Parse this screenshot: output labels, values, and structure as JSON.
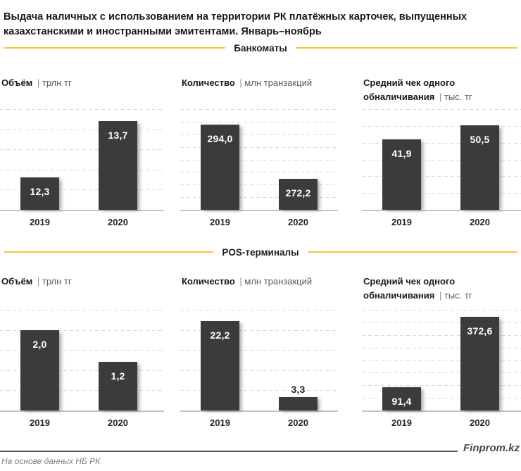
{
  "page_title": "Выдача наличных с использованием на территории РК платёжных карточек, выпущенных казахстанскими и иностранными эмитентами. Январь–ноябрь",
  "sections": [
    {
      "label": "Банкоматы"
    },
    {
      "label": "POS-терминалы"
    }
  ],
  "chart_data": [
    {
      "type": "bar",
      "section": "Банкоматы",
      "metric": "Объём",
      "unit": "трлн тг",
      "categories": [
        "2019",
        "2020"
      ],
      "values": [
        12.3,
        13.7
      ],
      "value_labels": [
        "12,3",
        "13,7"
      ],
      "ylim": [
        11.5,
        14
      ],
      "grid_steps": 5,
      "grid": true,
      "legend": false
    },
    {
      "type": "bar",
      "section": "Банкоматы",
      "metric": "Количество",
      "unit": "млн транзакций",
      "categories": [
        "2019",
        "2020"
      ],
      "values": [
        294.0,
        272.2
      ],
      "value_labels": [
        "294,0",
        "272,2"
      ],
      "ylim": [
        260,
        300
      ],
      "grid_steps": 8,
      "grid": true,
      "legend": false
    },
    {
      "type": "bar",
      "section": "Банкоматы",
      "metric": "Средний чек одного обналичивания",
      "unit": "тыс. тг",
      "categories": [
        "2019",
        "2020"
      ],
      "values": [
        41.9,
        50.5
      ],
      "value_labels": [
        "41,9",
        "50,5"
      ],
      "ylim": [
        0,
        60
      ],
      "grid_steps": 6,
      "grid": true,
      "legend": false
    },
    {
      "type": "bar",
      "section": "POS-терминалы",
      "metric": "Объём",
      "unit": "трлн тг",
      "categories": [
        "2019",
        "2020"
      ],
      "values": [
        2.0,
        1.2
      ],
      "value_labels": [
        "2,0",
        "1,2"
      ],
      "ylim": [
        0,
        2.5
      ],
      "grid_steps": 5,
      "grid": true,
      "legend": false
    },
    {
      "type": "bar",
      "section": "POS-терминалы",
      "metric": "Количество",
      "unit": "млн транзакций",
      "categories": [
        "2019",
        "2020"
      ],
      "values": [
        22.2,
        3.3
      ],
      "value_labels": [
        "22,2",
        "3,3"
      ],
      "ylim": [
        0,
        25
      ],
      "grid_steps": 5,
      "grid": true,
      "legend": false
    },
    {
      "type": "bar",
      "section": "POS-терминалы",
      "metric": "Средний чек одного обналичивания",
      "unit": "тыс. тг",
      "categories": [
        "2019",
        "2020"
      ],
      "values": [
        91.4,
        372.6
      ],
      "value_labels": [
        "91,4",
        "372,6"
      ],
      "ylim": [
        0,
        400
      ],
      "grid_steps": 8,
      "grid": true,
      "legend": false
    }
  ],
  "footer": {
    "brand": "Finprom.kz",
    "source": "На основе данных НБ РК"
  },
  "colors": {
    "bar": "#3B3B3D",
    "accent": "#FFC233",
    "grid": "#D9D9D9",
    "axis": "#C4C4C4",
    "ink": "#1A1A1A",
    "unit_text": "#595959",
    "footer_line": "#595959",
    "brand_text": "#3E4A59",
    "source_text": "#808080",
    "bar_label": "#FFFFFF"
  }
}
